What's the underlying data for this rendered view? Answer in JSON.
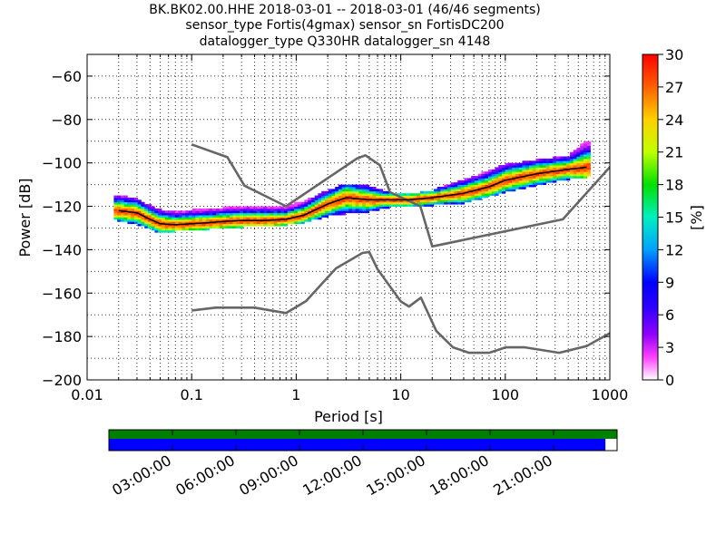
{
  "chart_data": {
    "type": "heatmap",
    "title_lines": [
      "BK.BK02.00.HHE   2018-03-01 -- 2018-03-01  (46/46 segments)",
      "sensor_type Fortis(4gmax) sensor_sn FortisDC200",
      "datalogger_type Q330HR datalogger_sn 4148"
    ],
    "xlabel": "Period [s]",
    "ylabel": "Power [dB]",
    "xscale": "log",
    "xlim": [
      0.01,
      1000
    ],
    "ylim": [
      -200,
      -50
    ],
    "x_ticks": [
      "0.01",
      "0.1",
      "1",
      "10",
      "100",
      "1000"
    ],
    "y_ticks": [
      "−60",
      "−80",
      "−100",
      "−120",
      "−140",
      "−160",
      "−180",
      "−200"
    ],
    "colorbar": {
      "label": "[%]",
      "range": [
        0,
        30
      ],
      "ticks": [
        "0",
        "3",
        "6",
        "9",
        "12",
        "15",
        "18",
        "21",
        "24",
        "27",
        "30"
      ]
    },
    "series": [
      {
        "name": "",
        "style": "noise-model-high",
        "color": "#666666",
        "x": [
          0.1,
          0.22,
          0.32,
          0.8,
          3.8,
          4.6,
          6.3,
          7.9,
          15.4,
          20.0,
          354.8,
          10000
        ],
        "y": [
          -91.5,
          -97.4,
          -110.5,
          -120.0,
          -98.0,
          -96.5,
          -101.0,
          -113.5,
          -120.0,
          -138.5,
          -126.0,
          -48.5
        ]
      },
      {
        "name": "",
        "style": "noise-model-low",
        "color": "#666666",
        "x": [
          0.1,
          0.17,
          0.4,
          0.8,
          1.24,
          2.4,
          4.3,
          5.0,
          6.0,
          10.0,
          12.0,
          15.6,
          21.9,
          31.6,
          45.0,
          70.0,
          101.0,
          154.0,
          328.0,
          600.0,
          1000.0
        ],
        "y": [
          -168.0,
          -166.7,
          -166.7,
          -169.2,
          -163.7,
          -148.6,
          -141.5,
          -141.1,
          -149.0,
          -163.8,
          -166.2,
          -162.1,
          -177.5,
          -185.0,
          -187.5,
          -187.5,
          -185.0,
          -185.0,
          -187.5,
          -184.4,
          -178.5
        ]
      },
      {
        "name": "",
        "style": "mode",
        "color": "#000000",
        "x": [
          0.02,
          0.03,
          0.04,
          0.05,
          0.07,
          0.1,
          0.15,
          0.2,
          0.3,
          0.5,
          0.8,
          1.2,
          2.0,
          3.0,
          5.0,
          8.0,
          12.0,
          20.0,
          40.0,
          70.0,
          100.0,
          200.0,
          400.0,
          600.0
        ],
        "y": [
          -122,
          -123,
          -126,
          -128,
          -128.5,
          -128,
          -127.5,
          -127,
          -126.5,
          -126.5,
          -126,
          -124,
          -119,
          -116,
          -117,
          -117,
          -117,
          -116,
          -114,
          -111,
          -108,
          -105,
          -103,
          -102
        ]
      }
    ],
    "heatmap_density": [
      {
        "x": 0.02,
        "y_lo": -126,
        "y_hi": -115,
        "peak": -122
      },
      {
        "x": 0.03,
        "y_lo": -128,
        "y_hi": -117,
        "peak": -123
      },
      {
        "x": 0.04,
        "y_lo": -130,
        "y_hi": -120,
        "peak": -126
      },
      {
        "x": 0.05,
        "y_lo": -132,
        "y_hi": -122,
        "peak": -128
      },
      {
        "x": 0.07,
        "y_lo": -131,
        "y_hi": -122,
        "peak": -128.5
      },
      {
        "x": 0.1,
        "y_lo": -131,
        "y_hi": -122,
        "peak": -128
      },
      {
        "x": 0.15,
        "y_lo": -130,
        "y_hi": -121,
        "peak": -127.5
      },
      {
        "x": 0.2,
        "y_lo": -130,
        "y_hi": -121,
        "peak": -127
      },
      {
        "x": 0.3,
        "y_lo": -129,
        "y_hi": -120,
        "peak": -126.5
      },
      {
        "x": 0.5,
        "y_lo": -129,
        "y_hi": -120,
        "peak": -126.5
      },
      {
        "x": 0.8,
        "y_lo": -128,
        "y_hi": -120,
        "peak": -126
      },
      {
        "x": 1.2,
        "y_lo": -127,
        "y_hi": -118,
        "peak": -124
      },
      {
        "x": 2.0,
        "y_lo": -124,
        "y_hi": -113,
        "peak": -119
      },
      {
        "x": 3.0,
        "y_lo": -123,
        "y_hi": -110,
        "peak": -116
      },
      {
        "x": 5.0,
        "y_lo": -122,
        "y_hi": -111,
        "peak": -117
      },
      {
        "x": 8.0,
        "y_lo": -120,
        "y_hi": -114,
        "peak": -117
      },
      {
        "x": 12.0,
        "y_lo": -120,
        "y_hi": -115,
        "peak": -117
      },
      {
        "x": 20.0,
        "y_lo": -119,
        "y_hi": -113,
        "peak": -116
      },
      {
        "x": 40.0,
        "y_lo": -118,
        "y_hi": -108,
        "peak": -114
      },
      {
        "x": 70.0,
        "y_lo": -115,
        "y_hi": -104,
        "peak": -111
      },
      {
        "x": 100.0,
        "y_lo": -113,
        "y_hi": -101,
        "peak": -108
      },
      {
        "x": 200.0,
        "y_lo": -110,
        "y_hi": -99,
        "peak": -105
      },
      {
        "x": 400.0,
        "y_lo": -107,
        "y_hi": -97,
        "peak": -103
      },
      {
        "x": 600.0,
        "y_lo": -106,
        "y_hi": -90,
        "peak": -102
      }
    ],
    "timeline": {
      "ticks": [
        "03:00:00",
        "06:00:00",
        "09:00:00",
        "12:00:00",
        "15:00:00",
        "18:00:00",
        "21:00:00"
      ],
      "bars": [
        {
          "name": "data-coverage",
          "color": "#008000",
          "fraction": 1.0
        },
        {
          "name": "psd-coverage",
          "color": "#0000ff",
          "fraction": 0.977
        }
      ]
    },
    "grid": true
  }
}
